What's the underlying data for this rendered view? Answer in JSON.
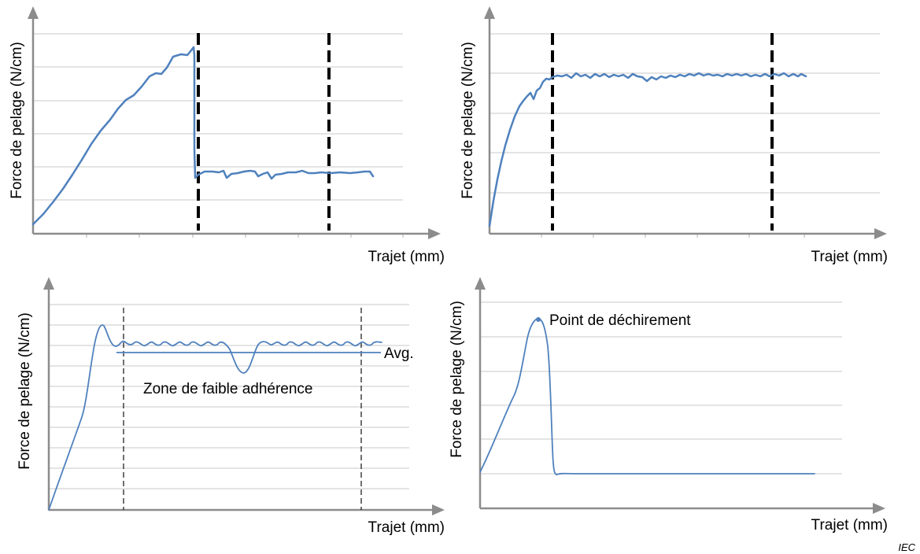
{
  "colors": {
    "curve": "#4f81bd",
    "axis": "#8c8c8c",
    "grid": "#c8c8c8",
    "marker": "#000000"
  },
  "chart_data": [
    {
      "type": "line",
      "ylabel": "Force de pelage  (N/cm)",
      "xlabel": "Trajet  (mm)",
      "xlim": [
        0,
        100
      ],
      "ylim": [
        0,
        100
      ],
      "grid": true,
      "series": [
        {
          "values": [
            [
              0,
              6
            ],
            [
              5,
              16
            ],
            [
              10,
              29
            ],
            [
              15,
              42
            ],
            [
              20,
              52
            ],
            [
              25,
              63
            ],
            [
              30,
              72
            ],
            [
              32,
              75
            ],
            [
              35,
              80
            ],
            [
              37,
              80
            ],
            [
              40,
              86
            ],
            [
              42,
              88
            ],
            [
              43,
              87
            ],
            [
              44,
              93
            ],
            [
              44.5,
              23
            ],
            [
              46,
              26
            ],
            [
              50,
              28
            ],
            [
              53,
              24
            ],
            [
              56,
              27
            ],
            [
              60,
              25
            ],
            [
              65,
              26
            ],
            [
              70,
              27
            ],
            [
              75,
              27
            ],
            [
              80,
              27
            ],
            [
              85,
              28
            ],
            [
              88,
              27
            ],
            [
              88.5,
              24
            ]
          ]
        }
      ],
      "markers_x": [
        44.5,
        80
      ]
    },
    {
      "type": "line",
      "ylabel": "Force de pelage  (N/cm)",
      "xlabel": "Trajet  (mm)",
      "xlim": [
        0,
        100
      ],
      "ylim": [
        0,
        100
      ],
      "grid": true,
      "series": [
        {
          "values": [
            [
              0,
              4
            ],
            [
              2,
              20
            ],
            [
              4,
              38
            ],
            [
              6,
              50
            ],
            [
              8,
              60
            ],
            [
              10,
              64
            ],
            [
              12,
              67
            ],
            [
              14,
              68
            ],
            [
              16,
              72
            ],
            [
              18,
              76
            ],
            [
              20,
              78
            ],
            [
              25,
              78
            ],
            [
              30,
              79
            ],
            [
              35,
              78
            ],
            [
              40,
              78
            ],
            [
              45,
              79
            ],
            [
              50,
              78
            ],
            [
              55,
              79
            ],
            [
              60,
              79
            ],
            [
              65,
              79
            ],
            [
              70,
              79
            ],
            [
              75,
              79
            ],
            [
              80,
              79
            ],
            [
              85,
              79
            ],
            [
              88,
              79
            ]
          ]
        }
      ],
      "markers_x": [
        18.5,
        80
      ]
    },
    {
      "type": "line",
      "ylabel": "Force de pelage  (N/cm)",
      "xlabel": "Trajet  (mm)",
      "xlim": [
        0,
        100
      ],
      "ylim": [
        0,
        100
      ],
      "grid": true,
      "series": [
        {
          "values": [
            [
              0,
              0
            ],
            [
              5,
              22
            ],
            [
              10,
              42
            ],
            [
              12,
              58
            ],
            [
              14,
              72
            ],
            [
              16,
              80
            ],
            [
              18,
              74
            ],
            [
              20,
              71
            ],
            [
              25,
              72
            ],
            [
              30,
              72
            ],
            [
              35,
              72
            ],
            [
              40,
              72
            ],
            [
              45,
              72
            ],
            [
              50,
              72
            ],
            [
              55,
              72
            ],
            [
              58,
              68
            ],
            [
              60,
              60
            ],
            [
              62,
              59
            ],
            [
              64,
              66
            ],
            [
              66,
              71
            ],
            [
              70,
              72
            ],
            [
              75,
              72
            ],
            [
              80,
              72
            ],
            [
              85,
              72
            ],
            [
              90,
              72
            ],
            [
              95,
              72
            ],
            [
              100,
              72
            ]
          ]
        }
      ],
      "markers_x": [
        20,
        94
      ],
      "avg": 69,
      "annotations": [
        "Avg.",
        "Zone de faible adhérence"
      ]
    },
    {
      "type": "line",
      "ylabel": "Force de pelage  (N/cm)",
      "xlabel": "Trajet  (mm)",
      "xlim": [
        0,
        100
      ],
      "ylim": [
        0,
        100
      ],
      "grid": true,
      "series": [
        {
          "values": [
            [
              0,
              18
            ],
            [
              4,
              36
            ],
            [
              9,
              53
            ],
            [
              12,
              68
            ],
            [
              15,
              88
            ],
            [
              17,
              92
            ],
            [
              19,
              88
            ],
            [
              21,
              60
            ],
            [
              23,
              22
            ],
            [
              24,
              17
            ],
            [
              26,
              17
            ],
            [
              40,
              17
            ],
            [
              60,
              17
            ],
            [
              80,
              17
            ],
            [
              95,
              17
            ]
          ]
        }
      ],
      "annotations": [
        "Point de déchirement"
      ]
    }
  ],
  "labels": {
    "c1": {
      "ylabel": "Force de pelage  (N/cm)",
      "xlabel": "Trajet  (mm)"
    },
    "c2": {
      "ylabel": "Force de pelage  (N/cm)",
      "xlabel": "Trajet  (mm)"
    },
    "c3": {
      "ylabel": "Force de pelage  (N/cm)",
      "xlabel": "Trajet  (mm)",
      "avg": "Avg.",
      "zone": "Zone de faible adhérence"
    },
    "c4": {
      "ylabel": "Force de pelage  (N/cm)",
      "xlabel": "Trajet  (mm)",
      "peak": "Point de déchirement"
    }
  },
  "credit": "IEC"
}
